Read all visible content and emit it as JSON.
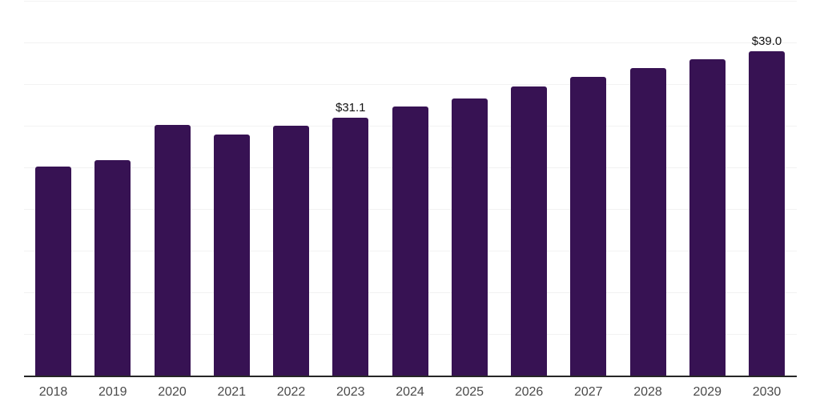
{
  "chart_data": {
    "type": "bar",
    "title": "",
    "xlabel": "",
    "ylabel": "",
    "categories": [
      "2018",
      "2019",
      "2020",
      "2021",
      "2022",
      "2023",
      "2024",
      "2025",
      "2026",
      "2027",
      "2028",
      "2029",
      "2030"
    ],
    "values": [
      25.2,
      26.0,
      30.2,
      29.0,
      30.1,
      31.1,
      32.4,
      33.4,
      34.8,
      36.0,
      37.0,
      38.1,
      39.0
    ],
    "data_labels": {
      "2023": "$31.1",
      "2030": "$39.0"
    },
    "ylim": [
      0,
      45
    ],
    "gridline_step": 5,
    "grid": true,
    "y_axis_tick_labels_visible": false,
    "legend": null,
    "colors": {
      "bar": "#371253",
      "gridline": "#f2f2f2",
      "axis_line": "#262626",
      "data_label": "#111111",
      "tick_label": "#4a4a4a",
      "background": "#ffffff"
    }
  }
}
